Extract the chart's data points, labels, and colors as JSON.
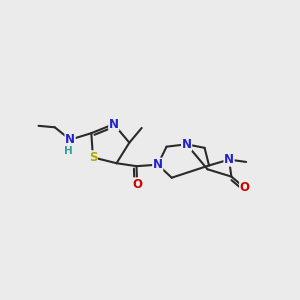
{
  "background_color": "#ebebeb",
  "bond_color": "#2a2a2a",
  "bond_width": 1.5,
  "atom_colors": {
    "N": "#2222cc",
    "S": "#aaaa00",
    "O": "#cc0000",
    "H": "#3a9a9a",
    "C": "#2a2a2a"
  },
  "font_size": 8.5
}
